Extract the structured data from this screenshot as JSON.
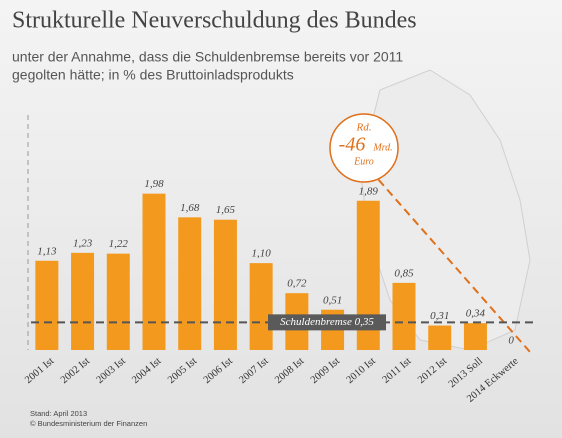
{
  "chart_data": {
    "type": "bar",
    "title": "Strukturelle Neuverschuldung des Bundes",
    "subtitle": [
      "unter der Annahme, dass die Schuldenbremse bereits vor 2011",
      "gegolten hätte; in % des Bruttoinladsprodukts"
    ],
    "categories": [
      "2001 Ist",
      "2002 Ist",
      "2003 Ist",
      "2004 Ist",
      "2005 Ist",
      "2006 Ist",
      "2007 Ist",
      "2008 Ist",
      "2009 Ist",
      "2010 Ist",
      "2011 Ist",
      "2012 Ist",
      "2013 Soll",
      "2014 Eckwerte"
    ],
    "values": [
      1.13,
      1.23,
      1.22,
      1.98,
      1.68,
      1.65,
      1.1,
      0.72,
      0.51,
      1.89,
      0.85,
      0.31,
      0.34,
      0
    ],
    "value_labels": [
      "1,13",
      "1,23",
      "1,22",
      "1,98",
      "1,68",
      "1,65",
      "1,10",
      "0,72",
      "0,51",
      "1,89",
      "0,85",
      "0,31",
      "0,34",
      "0"
    ],
    "color": "#f39a1e",
    "ylim": [
      0,
      2.9
    ],
    "reference_line": {
      "value": 0.35,
      "label": "Schuldenbremse 0,35"
    },
    "annotation": [
      "Rd.",
      "-46",
      "Mrd.",
      "Euro"
    ],
    "footer": [
      "Stand: April 2013",
      "© Bundesministerium der Finanzen"
    ]
  }
}
